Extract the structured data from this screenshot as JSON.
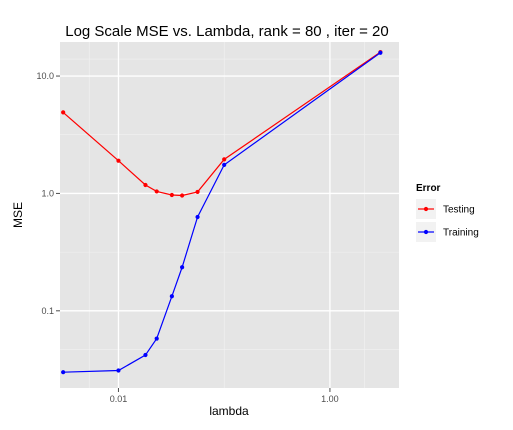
{
  "chart_data": {
    "type": "line",
    "title": "Log Scale MSE vs. Lambda, rank =  80 , iter =  20",
    "xlabel": "lambda",
    "ylabel": "MSE",
    "x_scale": "log10",
    "y_scale": "log10",
    "xlim": [
      0.0028,
      4.5
    ],
    "ylim": [
      0.022,
      19.5
    ],
    "x_ticks": [
      {
        "value": 0.01,
        "label": "0.01"
      },
      {
        "value": 1,
        "label": "1.00"
      }
    ],
    "y_ticks": [
      {
        "value": 0.1,
        "label": "0.1"
      },
      {
        "value": 1,
        "label": "1.0"
      },
      {
        "value": 10,
        "label": "10.0"
      }
    ],
    "grid": true,
    "legend": {
      "title": "Error",
      "position": "right"
    },
    "series": [
      {
        "name": "Testing",
        "color": "#ff0000",
        "x": [
          0.003,
          0.01,
          0.018,
          0.023,
          0.032,
          0.04,
          0.056,
          0.1,
          3.0
        ],
        "y": [
          4.9,
          1.9,
          1.18,
          1.04,
          0.97,
          0.96,
          1.03,
          1.95,
          16.0
        ]
      },
      {
        "name": "Training",
        "color": "#0000ff",
        "x": [
          0.003,
          0.01,
          0.018,
          0.023,
          0.032,
          0.04,
          0.056,
          0.1,
          3.0
        ],
        "y": [
          0.03,
          0.031,
          0.042,
          0.058,
          0.133,
          0.235,
          0.63,
          1.75,
          15.8
        ]
      }
    ]
  }
}
